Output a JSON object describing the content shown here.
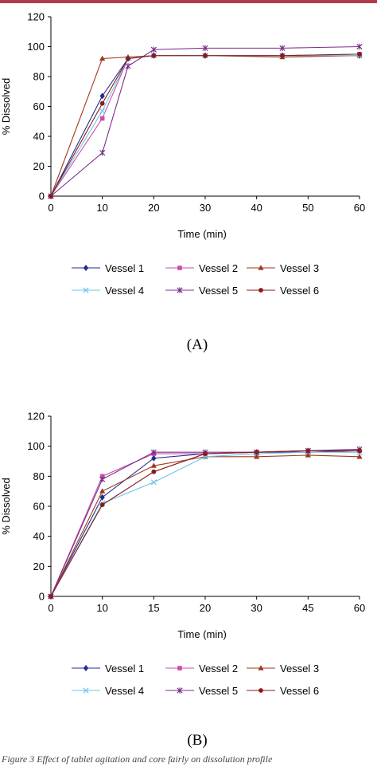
{
  "chart_data": [
    {
      "type": "line",
      "panel_label": "(A)",
      "xlabel": "Time (min)",
      "ylabel": "% Dissolved",
      "ylim": [
        0,
        120
      ],
      "y_ticks": [
        "0",
        "20",
        "40",
        "60",
        "80",
        "100",
        "120"
      ],
      "x_tick_labels": [
        "0",
        "10",
        "20",
        "30",
        "40",
        "50",
        "60"
      ],
      "x_axis_scale": "linear",
      "grid": false,
      "legend_placement": "bottom",
      "series": [
        {
          "name": "Vessel 1",
          "color": "#1f2f8a",
          "marker": "diamond",
          "points": [
            [
              0,
              0
            ],
            [
              10,
              67
            ],
            [
              15,
              92
            ],
            [
              20,
              94
            ],
            [
              30,
              94
            ],
            [
              45,
              94
            ],
            [
              60,
              94
            ]
          ]
        },
        {
          "name": "Vessel 2",
          "color": "#c94fa8",
          "marker": "square",
          "points": [
            [
              0,
              0
            ],
            [
              10,
              52
            ],
            [
              15,
              92
            ],
            [
              20,
              94
            ],
            [
              30,
              94
            ],
            [
              45,
              94
            ],
            [
              60,
              95
            ]
          ]
        },
        {
          "name": "Vessel 3",
          "color": "#9c3a1c",
          "marker": "triangle",
          "points": [
            [
              0,
              0
            ],
            [
              10,
              92
            ],
            [
              15,
              93
            ],
            [
              20,
              94
            ],
            [
              30,
              94
            ],
            [
              45,
              93
            ],
            [
              60,
              94
            ]
          ]
        },
        {
          "name": "Vessel 4",
          "color": "#6ec6e8",
          "marker": "x",
          "points": [
            [
              0,
              0
            ],
            [
              10,
              57
            ],
            [
              15,
              92
            ],
            [
              20,
              94
            ],
            [
              30,
              94
            ],
            [
              45,
              94
            ],
            [
              60,
              94
            ]
          ]
        },
        {
          "name": "Vessel 5",
          "color": "#7b2d8b",
          "marker": "star",
          "points": [
            [
              0,
              0
            ],
            [
              10,
              29
            ],
            [
              15,
              87
            ],
            [
              20,
              98
            ],
            [
              30,
              99
            ],
            [
              45,
              99
            ],
            [
              60,
              100
            ]
          ]
        },
        {
          "name": "Vessel 6",
          "color": "#8b1a1a",
          "marker": "circle",
          "points": [
            [
              0,
              0
            ],
            [
              10,
              62
            ],
            [
              15,
              92
            ],
            [
              20,
              94
            ],
            [
              30,
              94
            ],
            [
              45,
              94
            ],
            [
              60,
              95
            ]
          ]
        }
      ]
    },
    {
      "type": "line",
      "panel_label": "(B)",
      "xlabel": "Time (min)",
      "ylabel": "% Dissolved",
      "ylim": [
        0,
        120
      ],
      "y_ticks": [
        "0",
        "20",
        "40",
        "60",
        "80",
        "100",
        "120"
      ],
      "x_tick_labels": [
        "0",
        "10",
        "15",
        "20",
        "30",
        "45",
        "60"
      ],
      "x_axis_scale": "categorical",
      "grid": false,
      "legend_placement": "bottom",
      "series": [
        {
          "name": "Vessel 1",
          "color": "#1f2f8a",
          "marker": "diamond",
          "points": [
            [
              0,
              0
            ],
            [
              10,
              66
            ],
            [
              15,
              92
            ],
            [
              20,
              95
            ],
            [
              30,
              96
            ],
            [
              45,
              96
            ],
            [
              60,
              97
            ]
          ]
        },
        {
          "name": "Vessel 2",
          "color": "#c94fa8",
          "marker": "square",
          "points": [
            [
              0,
              0
            ],
            [
              10,
              80
            ],
            [
              15,
              95
            ],
            [
              20,
              95
            ],
            [
              30,
              96
            ],
            [
              45,
              97
            ],
            [
              60,
              97
            ]
          ]
        },
        {
          "name": "Vessel 3",
          "color": "#9c3a1c",
          "marker": "triangle",
          "points": [
            [
              0,
              0
            ],
            [
              10,
              70
            ],
            [
              15,
              87
            ],
            [
              20,
              93
            ],
            [
              30,
              93
            ],
            [
              45,
              94
            ],
            [
              60,
              93
            ]
          ]
        },
        {
          "name": "Vessel 4",
          "color": "#6ec6e8",
          "marker": "x",
          "points": [
            [
              0,
              0
            ],
            [
              10,
              62
            ],
            [
              15,
              76
            ],
            [
              20,
              93
            ],
            [
              30,
              95
            ],
            [
              45,
              96
            ],
            [
              60,
              96
            ]
          ]
        },
        {
          "name": "Vessel 5",
          "color": "#7b2d8b",
          "marker": "star",
          "points": [
            [
              0,
              0
            ],
            [
              10,
              78
            ],
            [
              15,
              96
            ],
            [
              20,
              96
            ],
            [
              30,
              96
            ],
            [
              45,
              97
            ],
            [
              60,
              98
            ]
          ]
        },
        {
          "name": "Vessel 6",
          "color": "#8b1a1a",
          "marker": "circle",
          "points": [
            [
              0,
              0
            ],
            [
              10,
              61
            ],
            [
              15,
              83
            ],
            [
              20,
              95
            ],
            [
              30,
              96
            ],
            [
              45,
              97
            ],
            [
              60,
              97
            ]
          ]
        }
      ]
    }
  ],
  "caption": "Figure 3 Effect of tablet agitation and core fairly on dissolution profile"
}
